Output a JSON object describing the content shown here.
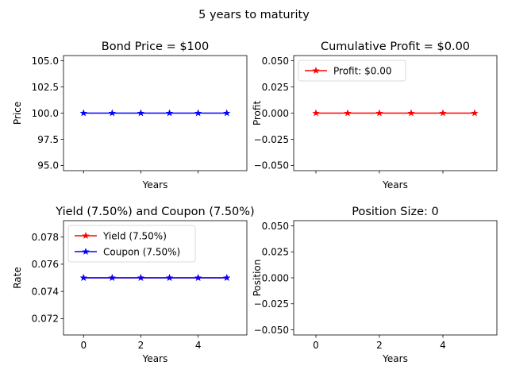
{
  "figure": {
    "suptitle": "5 years to maturity"
  },
  "chart_data": [
    {
      "type": "line",
      "title": "Bond Price = $100",
      "xlabel": "Years",
      "ylabel": "Price",
      "xlim": [
        -0.7,
        5.7
      ],
      "ylim": [
        94.5,
        105.5
      ],
      "yticks": [
        95.0,
        97.5,
        100.0,
        102.5,
        105.0
      ],
      "ytick_labels": [
        "95.0",
        "97.5",
        "100.0",
        "102.5",
        "105.0"
      ],
      "xticks": [
        0,
        2,
        4
      ],
      "show_xtick_labels": false,
      "grid": false,
      "legend": null,
      "series": [
        {
          "x": [
            0,
            1,
            2,
            3,
            4,
            5
          ],
          "values": [
            100,
            100,
            100,
            100,
            100,
            100
          ],
          "color": "#0000ff",
          "marker": "star"
        }
      ]
    },
    {
      "type": "line",
      "title": "Cumulative Profit = $0.00",
      "xlabel": "Years",
      "ylabel": "Profit",
      "xlim": [
        -0.7,
        5.7
      ],
      "ylim": [
        -0.055,
        0.055
      ],
      "yticks": [
        -0.05,
        -0.025,
        0.0,
        0.025,
        0.05
      ],
      "ytick_labels": [
        "−0.050",
        "−0.025",
        "0.000",
        "0.025",
        "0.050"
      ],
      "xticks": [
        0,
        2,
        4
      ],
      "show_xtick_labels": false,
      "grid": false,
      "legend": "upper-left",
      "series": [
        {
          "name": "Profit: $0.00",
          "x": [
            0,
            1,
            2,
            3,
            4,
            5
          ],
          "values": [
            0,
            0,
            0,
            0,
            0,
            0
          ],
          "color": "#ff0000",
          "marker": "star"
        }
      ]
    },
    {
      "type": "line",
      "title": "Yield (7.50%) and Coupon (7.50%)",
      "xlabel": "Years",
      "ylabel": "Rate",
      "xlim": [
        -0.7,
        5.7
      ],
      "ylim": [
        0.0708,
        0.0792
      ],
      "yticks": [
        0.072,
        0.074,
        0.076,
        0.078
      ],
      "ytick_labels": [
        "0.072",
        "0.074",
        "0.076",
        "0.078"
      ],
      "xticks": [
        0,
        2,
        4
      ],
      "xtick_labels": [
        "0",
        "2",
        "4"
      ],
      "show_xtick_labels": true,
      "grid": false,
      "legend": "upper-left",
      "series": [
        {
          "name": "Yield (7.50%)",
          "x": [
            0,
            1,
            2,
            3,
            4,
            5
          ],
          "values": [
            0.075,
            0.075,
            0.075,
            0.075,
            0.075,
            0.075
          ],
          "color": "#ff0000",
          "marker": "star"
        },
        {
          "name": "Coupon (7.50%)",
          "x": [
            0,
            1,
            2,
            3,
            4,
            5
          ],
          "values": [
            0.075,
            0.075,
            0.075,
            0.075,
            0.075,
            0.075
          ],
          "color": "#0000ff",
          "marker": "star"
        }
      ]
    },
    {
      "type": "line",
      "title": "Position Size: 0",
      "xlabel": "Years",
      "ylabel": "Position",
      "xlim": [
        -0.7,
        5.7
      ],
      "ylim": [
        -0.055,
        0.055
      ],
      "yticks": [
        -0.05,
        -0.025,
        0.0,
        0.025,
        0.05
      ],
      "ytick_labels": [
        "−0.050",
        "−0.025",
        "0.000",
        "0.025",
        "0.050"
      ],
      "xticks": [
        0,
        2,
        4
      ],
      "xtick_labels": [
        "0",
        "2",
        "4"
      ],
      "show_xtick_labels": true,
      "grid": false,
      "legend": null,
      "series": []
    }
  ]
}
